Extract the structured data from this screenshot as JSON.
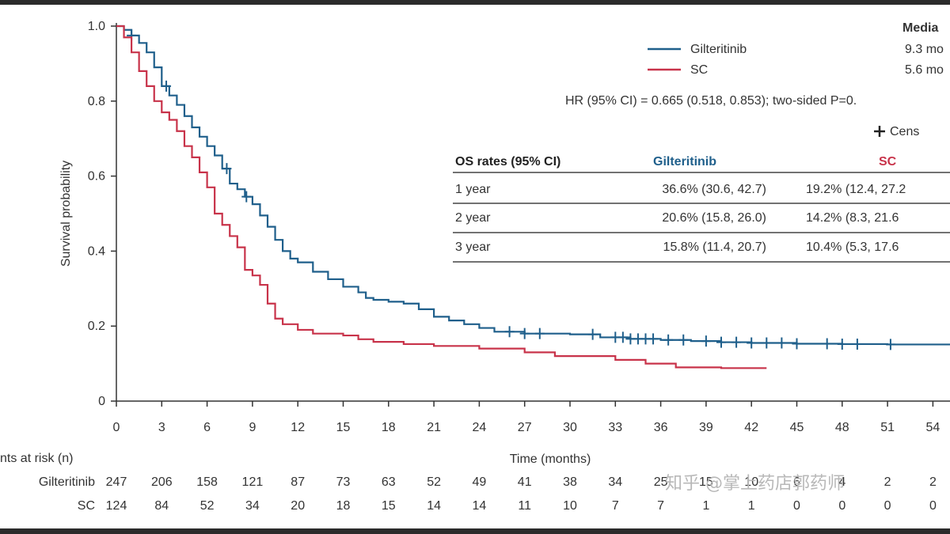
{
  "chart_data": {
    "type": "line",
    "xlabel": "Time (months)",
    "ylabel": "Survival probability",
    "xlim": [
      0,
      55.5
    ],
    "ylim": [
      0,
      1.0
    ],
    "x_ticks": [
      "0",
      "3",
      "6",
      "9",
      "12",
      "15",
      "18",
      "21",
      "24",
      "27",
      "30",
      "33",
      "36",
      "39",
      "42",
      "45",
      "48",
      "51",
      "54"
    ],
    "y_ticks": [
      "0",
      "0.2",
      "0.4",
      "0.6",
      "0.8",
      "1.0"
    ],
    "series": [
      {
        "name": "Gilteritinib",
        "color": "#1f5f8b",
        "points": [
          [
            0,
            1.0
          ],
          [
            0.5,
            0.99
          ],
          [
            1,
            0.975
          ],
          [
            1.5,
            0.955
          ],
          [
            2,
            0.93
          ],
          [
            2.5,
            0.89
          ],
          [
            3,
            0.84
          ],
          [
            3.5,
            0.815
          ],
          [
            4,
            0.79
          ],
          [
            4.5,
            0.76
          ],
          [
            5,
            0.73
          ],
          [
            5.5,
            0.705
          ],
          [
            6,
            0.68
          ],
          [
            6.5,
            0.655
          ],
          [
            7,
            0.62
          ],
          [
            7.5,
            0.58
          ],
          [
            8,
            0.565
          ],
          [
            8.5,
            0.545
          ],
          [
            9,
            0.525
          ],
          [
            9.5,
            0.495
          ],
          [
            10,
            0.465
          ],
          [
            10.5,
            0.43
          ],
          [
            11,
            0.4
          ],
          [
            11.5,
            0.38
          ],
          [
            12,
            0.37
          ],
          [
            13,
            0.345
          ],
          [
            14,
            0.325
          ],
          [
            15,
            0.305
          ],
          [
            16,
            0.29
          ],
          [
            16.5,
            0.275
          ],
          [
            17,
            0.27
          ],
          [
            18,
            0.265
          ],
          [
            19,
            0.26
          ],
          [
            20,
            0.245
          ],
          [
            21,
            0.225
          ],
          [
            22,
            0.215
          ],
          [
            23,
            0.205
          ],
          [
            24,
            0.195
          ],
          [
            25,
            0.185
          ],
          [
            27,
            0.18
          ],
          [
            30,
            0.178
          ],
          [
            32,
            0.17
          ],
          [
            34,
            0.166
          ],
          [
            36,
            0.163
          ],
          [
            38,
            0.16
          ],
          [
            40,
            0.157
          ],
          [
            42,
            0.155
          ],
          [
            45,
            0.153
          ],
          [
            48,
            0.152
          ],
          [
            51,
            0.151
          ],
          [
            55.5,
            0.151
          ]
        ],
        "censor_x": [
          1,
          3.3,
          7.3,
          8.6,
          26,
          27,
          28,
          31.5,
          33,
          33.5,
          34,
          34.5,
          35,
          35.5,
          36.5,
          37.5,
          39,
          40,
          41,
          42,
          43,
          44,
          45,
          47,
          48,
          49,
          51.2
        ]
      },
      {
        "name": "SC",
        "color": "#c8334a",
        "points": [
          [
            0,
            1.0
          ],
          [
            0.5,
            0.97
          ],
          [
            1,
            0.93
          ],
          [
            1.5,
            0.88
          ],
          [
            2,
            0.84
          ],
          [
            2.5,
            0.8
          ],
          [
            3,
            0.77
          ],
          [
            3.5,
            0.75
          ],
          [
            4,
            0.72
          ],
          [
            4.5,
            0.68
          ],
          [
            5,
            0.65
          ],
          [
            5.5,
            0.61
          ],
          [
            6,
            0.57
          ],
          [
            6.5,
            0.5
          ],
          [
            7,
            0.47
          ],
          [
            7.5,
            0.44
          ],
          [
            8,
            0.41
          ],
          [
            8.5,
            0.35
          ],
          [
            9,
            0.335
          ],
          [
            9.5,
            0.31
          ],
          [
            10,
            0.26
          ],
          [
            10.5,
            0.22
          ],
          [
            11,
            0.205
          ],
          [
            12,
            0.19
          ],
          [
            13,
            0.18
          ],
          [
            15,
            0.175
          ],
          [
            16,
            0.165
          ],
          [
            17,
            0.158
          ],
          [
            19,
            0.152
          ],
          [
            21,
            0.147
          ],
          [
            24,
            0.14
          ],
          [
            27,
            0.13
          ],
          [
            29,
            0.12
          ],
          [
            33,
            0.11
          ],
          [
            35,
            0.1
          ],
          [
            37,
            0.09
          ],
          [
            40,
            0.088
          ],
          [
            43,
            0.088
          ]
        ]
      }
    ],
    "legend": {
      "placement": "top-right",
      "entries": [
        "Gilteritinib",
        "SC"
      ]
    },
    "annotations": {
      "median_header": "Media",
      "median_gilt": "9.3 mo",
      "median_sc": "5.6 mo",
      "hr_text": "HR (95% CI) = 0.665 (0.518, 0.853); two-sided P=0.",
      "censored_label": "Cens"
    },
    "os_table": {
      "headers": [
        "OS rates (95% CI)",
        "Gilteritinib",
        "SC"
      ],
      "rows": [
        {
          "label": "1 year",
          "gilt": "36.6% (30.6, 42.7)",
          "sc": "19.2% (12.4, 27.2"
        },
        {
          "label": "2 year",
          "gilt": "20.6% (15.8, 26.0)",
          "sc": "14.2% (8.3, 21.6"
        },
        {
          "label": "3 year",
          "gilt": "15.8% (11.4, 20.7)",
          "sc": "10.4% (5.3, 17.6"
        }
      ]
    },
    "at_risk": {
      "title": "nts at risk (n)",
      "rows": [
        {
          "label": "Gilteritinib",
          "values": [
            "247",
            "206",
            "158",
            "121",
            "87",
            "73",
            "63",
            "52",
            "49",
            "41",
            "38",
            "34",
            "25",
            "15",
            "10",
            "6",
            "4",
            "2",
            "2"
          ]
        },
        {
          "label": "SC",
          "values": [
            "124",
            "84",
            "52",
            "34",
            "20",
            "18",
            "15",
            "14",
            "14",
            "11",
            "10",
            "7",
            "7",
            "1",
            "1",
            "0",
            "0",
            "0",
            "0"
          ]
        }
      ]
    }
  },
  "watermark": "知乎 @掌上药店郭药师",
  "colors": {
    "gilteritinib": "#1f5f8b",
    "sc": "#c8334a",
    "axis": "#333333"
  }
}
